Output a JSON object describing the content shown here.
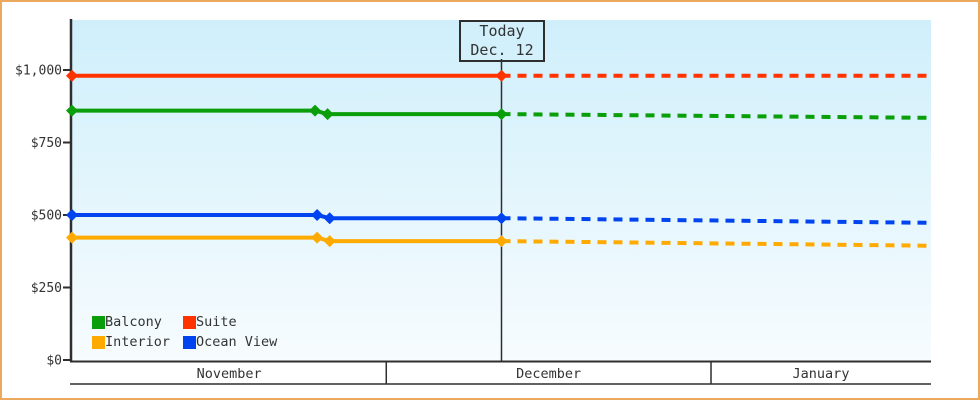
{
  "widget": {
    "border_color": "#eba95e",
    "background_color": "#ffffff",
    "axis_color": "#2e2e2e",
    "text_color": "#333333"
  },
  "chart_data": {
    "type": "line",
    "title": "",
    "xlabel": "",
    "ylabel": "",
    "x_axis": {
      "unit": "days from Nov 1",
      "range": [
        0,
        82
      ],
      "months": [
        {
          "label": "November",
          "start": 0,
          "end": 30
        },
        {
          "label": "December",
          "start": 30,
          "end": 61
        },
        {
          "label": "January",
          "start": 61,
          "end": 82
        }
      ]
    },
    "y_axis": {
      "range": [
        0,
        1000
      ],
      "ticks": [
        {
          "value": 0,
          "label": "$0"
        },
        {
          "value": 250,
          "label": "$250"
        },
        {
          "value": 500,
          "label": "$500"
        },
        {
          "value": 750,
          "label": "$750"
        },
        {
          "value": 1000,
          "label": "$1,000"
        }
      ]
    },
    "today": {
      "day": 41,
      "label_line1": "Today",
      "label_line2": "Dec. 12"
    },
    "plot_bg_gradient_top": "#cfeffb",
    "plot_bg_gradient_bottom": "#f7fcfe",
    "series": [
      {
        "name": "Suite",
        "color": "#ff3300",
        "solid": [
          [
            0,
            980
          ],
          [
            41,
            980
          ]
        ],
        "markers": [
          [
            0,
            980
          ],
          [
            41,
            980
          ]
        ],
        "forecast": [
          [
            41,
            980
          ],
          [
            82,
            980
          ]
        ]
      },
      {
        "name": "Balcony",
        "color": "#0a9e0a",
        "solid": [
          [
            0,
            860
          ],
          [
            23.2,
            860
          ],
          [
            24.4,
            848
          ],
          [
            41,
            848
          ]
        ],
        "markers": [
          [
            0,
            860
          ],
          [
            23.2,
            860
          ],
          [
            24.4,
            848
          ],
          [
            41,
            848
          ]
        ],
        "forecast": [
          [
            41,
            848
          ],
          [
            82,
            835
          ]
        ]
      },
      {
        "name": "Ocean View",
        "color": "#0044f0",
        "solid": [
          [
            0,
            500
          ],
          [
            23.4,
            500
          ],
          [
            24.6,
            489
          ],
          [
            41,
            489
          ]
        ],
        "markers": [
          [
            0,
            500
          ],
          [
            23.4,
            500
          ],
          [
            24.6,
            489
          ],
          [
            41,
            489
          ]
        ],
        "forecast": [
          [
            41,
            489
          ],
          [
            82,
            473
          ]
        ]
      },
      {
        "name": "Interior",
        "color": "#ffaa00",
        "solid": [
          [
            0,
            422
          ],
          [
            23.4,
            422
          ],
          [
            24.6,
            410
          ],
          [
            41,
            410
          ]
        ],
        "markers": [
          [
            0,
            422
          ],
          [
            23.4,
            422
          ],
          [
            24.6,
            410
          ],
          [
            41,
            410
          ]
        ],
        "forecast": [
          [
            41,
            410
          ],
          [
            82,
            394
          ]
        ]
      }
    ],
    "legend_position": "bottom-left",
    "grid": false
  },
  "legend": {
    "items": [
      {
        "label": "Balcony",
        "color": "#0a9e0a"
      },
      {
        "label": "Suite",
        "color": "#ff3300"
      },
      {
        "label": "Interior",
        "color": "#ffaa00"
      },
      {
        "label": "Ocean View",
        "color": "#0044f0"
      }
    ]
  }
}
